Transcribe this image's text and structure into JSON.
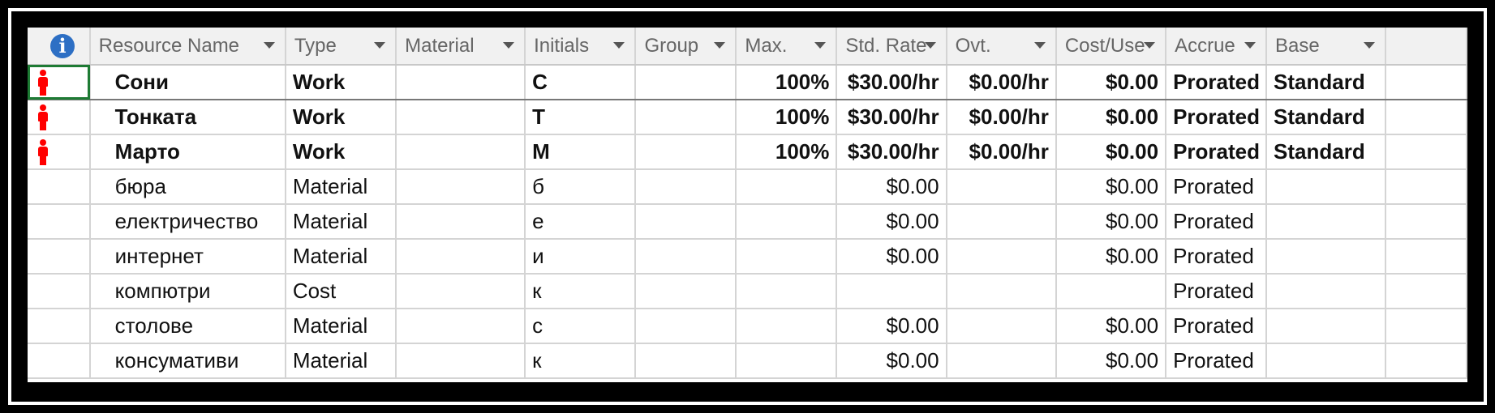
{
  "columns": [
    {
      "label": "",
      "icon": "info-icon"
    },
    {
      "label": "Resource Name"
    },
    {
      "label": "Type"
    },
    {
      "label": "Material"
    },
    {
      "label": "Initials"
    },
    {
      "label": "Group"
    },
    {
      "label": "Max."
    },
    {
      "label": "Std. Rate"
    },
    {
      "label": "Ovt."
    },
    {
      "label": "Cost/Use"
    },
    {
      "label": "Accrue"
    },
    {
      "label": "Base"
    }
  ],
  "rows": [
    {
      "overallocated": true,
      "name": "Сони",
      "type": "Work",
      "material": "",
      "initials": "С",
      "group": "",
      "max": "100%",
      "std_rate": "$30.00/hr",
      "ovt": "$0.00/hr",
      "cost_use": "$0.00",
      "accrue": "Prorated",
      "base": "Standard"
    },
    {
      "overallocated": true,
      "name": "Тонката",
      "type": "Work",
      "material": "",
      "initials": "Т",
      "group": "",
      "max": "100%",
      "std_rate": "$30.00/hr",
      "ovt": "$0.00/hr",
      "cost_use": "$0.00",
      "accrue": "Prorated",
      "base": "Standard"
    },
    {
      "overallocated": true,
      "name": "Марто",
      "type": "Work",
      "material": "",
      "initials": "М",
      "group": "",
      "max": "100%",
      "std_rate": "$30.00/hr",
      "ovt": "$0.00/hr",
      "cost_use": "$0.00",
      "accrue": "Prorated",
      "base": "Standard"
    },
    {
      "overallocated": false,
      "name": "бюра",
      "type": "Material",
      "material": "",
      "initials": "б",
      "group": "",
      "max": "",
      "std_rate": "$0.00",
      "ovt": "",
      "cost_use": "$0.00",
      "accrue": "Prorated",
      "base": ""
    },
    {
      "overallocated": false,
      "name": "електричество",
      "type": "Material",
      "material": "",
      "initials": "е",
      "group": "",
      "max": "",
      "std_rate": "$0.00",
      "ovt": "",
      "cost_use": "$0.00",
      "accrue": "Prorated",
      "base": ""
    },
    {
      "overallocated": false,
      "name": "интернет",
      "type": "Material",
      "material": "",
      "initials": "и",
      "group": "",
      "max": "",
      "std_rate": "$0.00",
      "ovt": "",
      "cost_use": "$0.00",
      "accrue": "Prorated",
      "base": ""
    },
    {
      "overallocated": false,
      "name": "компютри",
      "type": "Cost",
      "material": "",
      "initials": "к",
      "group": "",
      "max": "",
      "std_rate": "",
      "ovt": "",
      "cost_use": "",
      "accrue": "Prorated",
      "base": ""
    },
    {
      "overallocated": false,
      "name": "столове",
      "type": "Material",
      "material": "",
      "initials": "с",
      "group": "",
      "max": "",
      "std_rate": "$0.00",
      "ovt": "",
      "cost_use": "$0.00",
      "accrue": "Prorated",
      "base": ""
    },
    {
      "overallocated": false,
      "name": "консумативи",
      "type": "Material",
      "material": "",
      "initials": "к",
      "group": "",
      "max": "",
      "std_rate": "$0.00",
      "ovt": "",
      "cost_use": "$0.00",
      "accrue": "Prorated",
      "base": ""
    }
  ],
  "colors": {
    "overallocated_text": "#ff0000",
    "info_icon": "#2d6fc4",
    "selection": "#1e7b34"
  }
}
